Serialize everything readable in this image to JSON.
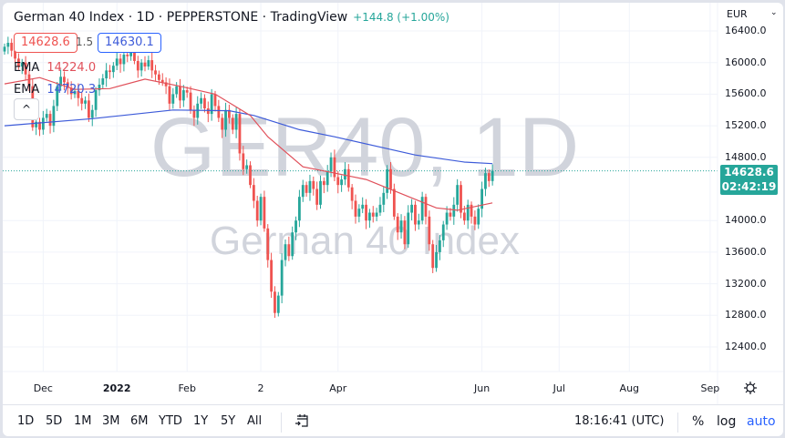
{
  "header": {
    "title": "German 40 Index · 1D · PEPPERSTONE · TradingView",
    "change": "+144.8 (+1.00%)",
    "bid": "14628.6",
    "spread": "1.5",
    "ask": "14630.1",
    "collapse_icon": "chevron-up-icon"
  },
  "indicators": [
    {
      "label": "EMA",
      "value": "14224.0",
      "color": "#e0505a"
    },
    {
      "label": "EMA",
      "value": "14720.3",
      "color": "#3d5bd9"
    }
  ],
  "watermark": {
    "symbol": "GER40, 1D",
    "name": "German 40 Index"
  },
  "price_axis": {
    "currency": "EUR",
    "last_price": "14628.6",
    "countdown": "02:42:19"
  },
  "bottom_bar": {
    "ranges": [
      "1D",
      "5D",
      "1M",
      "3M",
      "6M",
      "YTD",
      "1Y",
      "5Y",
      "All"
    ],
    "goto_icon": "calendar-goto-icon",
    "clock": "18:16:41 (UTC)",
    "percent": "%",
    "log": "log",
    "auto": "auto"
  },
  "colors": {
    "up": "#26a69a",
    "down": "#ef5350",
    "ema_fast": "#e0505a",
    "ema_slow": "#3d5bd9",
    "auto": "#2962ff"
  },
  "chart_data": {
    "type": "candlestick",
    "ylim": [
      12200,
      16550
    ],
    "grid": true,
    "y_ticks": [
      "16400.0",
      "16000.0",
      "15600.0",
      "15200.0",
      "14800.0",
      "14000.0",
      "13600.0",
      "13200.0",
      "12800.0",
      "12400.0"
    ],
    "x_ticks": [
      {
        "label": "Dec",
        "at_candle": 11
      },
      {
        "label": "2022",
        "at_candle": 32
      },
      {
        "label": "Feb",
        "at_candle": 52
      },
      {
        "label": "2",
        "at_candle": 73
      },
      {
        "label": "Apr",
        "at_candle": 95
      },
      {
        "label": "Jun",
        "at_candle": 136
      },
      {
        "label": "Jul",
        "at_candle": 158
      },
      {
        "label": "Aug",
        "at_candle": 178
      },
      {
        "label": "Sep",
        "at_candle": 201
      }
    ],
    "close": [
      16200,
      16250,
      16150,
      16050,
      15950,
      16000,
      15850,
      15700,
      15180,
      15250,
      15150,
      15300,
      15350,
      15200,
      15450,
      15700,
      15820,
      15750,
      15680,
      15600,
      15640,
      15550,
      15480,
      15520,
      15300,
      15400,
      15650,
      15720,
      15800,
      15900,
      15880,
      15960,
      16050,
      15980,
      16100,
      16080,
      16150,
      16020,
      15900,
      16000,
      15950,
      16030,
      15900,
      15850,
      15780,
      15750,
      15700,
      15480,
      15600,
      15700,
      15520,
      15650,
      15620,
      15400,
      15300,
      15480,
      15550,
      15420,
      15350,
      15600,
      15450,
      15300,
      15150,
      15400,
      15300,
      15150,
      15350,
      14850,
      14650,
      14700,
      14450,
      14250,
      14000,
      14300,
      13900,
      13500,
      13100,
      12830,
      13050,
      13500,
      13700,
      13550,
      13850,
      14000,
      14300,
      14450,
      14350,
      14500,
      14400,
      14200,
      14500,
      14450,
      14620,
      14800,
      14550,
      14450,
      14520,
      14650,
      14420,
      14250,
      14050,
      14150,
      14200,
      14000,
      14100,
      14050,
      14100,
      14200,
      14350,
      14650,
      14400,
      14050,
      13850,
      14000,
      13700,
      14100,
      14200,
      13950,
      14000,
      14300,
      14050,
      13700,
      13400,
      13600,
      13750,
      13950,
      14100,
      14050,
      14200,
      14450,
      14100,
      14000,
      14200,
      14050,
      13950,
      14150,
      14400,
      14600,
      14500,
      14628.6
    ],
    "ema_fast": [
      [
        0,
        15730
      ],
      [
        10,
        15810
      ],
      [
        20,
        15660
      ],
      [
        30,
        15670
      ],
      [
        40,
        15790
      ],
      [
        50,
        15700
      ],
      [
        60,
        15600
      ],
      [
        70,
        15330
      ],
      [
        75,
        15060
      ],
      [
        85,
        14680
      ],
      [
        93,
        14610
      ],
      [
        103,
        14520
      ],
      [
        113,
        14340
      ],
      [
        123,
        14160
      ],
      [
        129,
        14130
      ],
      [
        139,
        14224
      ]
    ],
    "ema_slow": [
      [
        0,
        15200
      ],
      [
        25,
        15290
      ],
      [
        48,
        15400
      ],
      [
        64,
        15390
      ],
      [
        71,
        15330
      ],
      [
        84,
        15150
      ],
      [
        94,
        15060
      ],
      [
        117,
        14830
      ],
      [
        131,
        14740
      ],
      [
        139,
        14720.3
      ]
    ]
  }
}
